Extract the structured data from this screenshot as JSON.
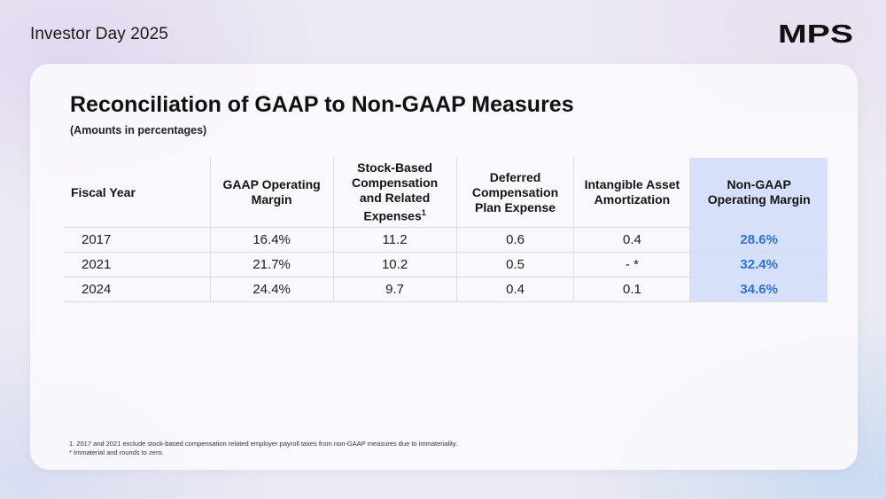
{
  "header": {
    "title": "Investor Day 2025",
    "logo_text": "MPS"
  },
  "slide": {
    "title": "Reconciliation of GAAP to Non-GAAP Measures",
    "subtitle": "(Amounts in percentages)"
  },
  "table": {
    "headers": {
      "fiscal_year": "Fiscal Year",
      "gaap_margin": [
        "GAAP Operating",
        "Margin"
      ],
      "stock_based": [
        "Stock-Based",
        "Compensation",
        "and Related",
        "Expenses"
      ],
      "stock_based_footnote": "1",
      "deferred": [
        "Deferred",
        "Compensation",
        "Plan Expense"
      ],
      "intangible": [
        "Intangible Asset",
        "Amortization"
      ],
      "non_gaap": [
        "Non-GAAP",
        "Operating Margin"
      ]
    },
    "rows": [
      {
        "year": "2017",
        "gaap": "16.4%",
        "stock": "11.2",
        "deferred": "0.6",
        "intangible": "0.4",
        "non_gaap": "28.6%"
      },
      {
        "year": "2021",
        "gaap": "21.7%",
        "stock": "10.2",
        "deferred": "0.5",
        "intangible": "- *",
        "non_gaap": "32.4%"
      },
      {
        "year": "2024",
        "gaap": "24.4%",
        "stock": "9.7",
        "deferred": "0.4",
        "intangible": "0.1",
        "non_gaap": "34.6%"
      }
    ]
  },
  "footnotes": [
    "1. 2017 and 2021 exclude stock-based compensation related employer payroll taxes from non-GAAP measures due to immateriality.",
    "* Immaterial and rounds to zero."
  ],
  "colors": {
    "highlight_bg": "#d6e0fb",
    "highlight_text": "#2e73cf"
  }
}
